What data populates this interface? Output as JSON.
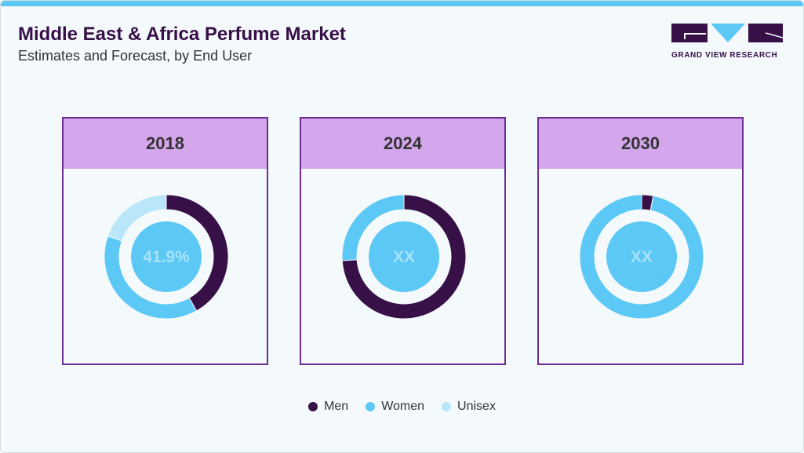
{
  "header": {
    "title": "Middle East & Africa Perfume Market",
    "subtitle": "Estimates and Forecast, by End User"
  },
  "logo": {
    "text": "GRAND VIEW RESEARCH"
  },
  "colors": {
    "Men": "#361047",
    "Women": "#5bc8f5",
    "Unisex": "#b9e6f8",
    "center": "#5bc8f5",
    "center_text": "#a8e2fa",
    "border": "#6c2d93",
    "header": "#d4a6ec"
  },
  "chart_data": [
    {
      "type": "pie",
      "title": "2018",
      "center_label": "41.9%",
      "categories": [
        "Men",
        "Women",
        "Unisex"
      ],
      "values": [
        41.9,
        38.5,
        19.6
      ]
    },
    {
      "type": "pie",
      "title": "2024",
      "center_label": "XX",
      "categories": [
        "Men",
        "Women",
        "Unisex"
      ],
      "values": [
        74,
        26,
        0
      ]
    },
    {
      "type": "pie",
      "title": "2030",
      "center_label": "XX",
      "categories": [
        "Men",
        "Women",
        "Unisex"
      ],
      "values": [
        3,
        97,
        0
      ]
    }
  ],
  "legend": {
    "placement": "bottom",
    "items": [
      "Men",
      "Women",
      "Unisex"
    ]
  }
}
